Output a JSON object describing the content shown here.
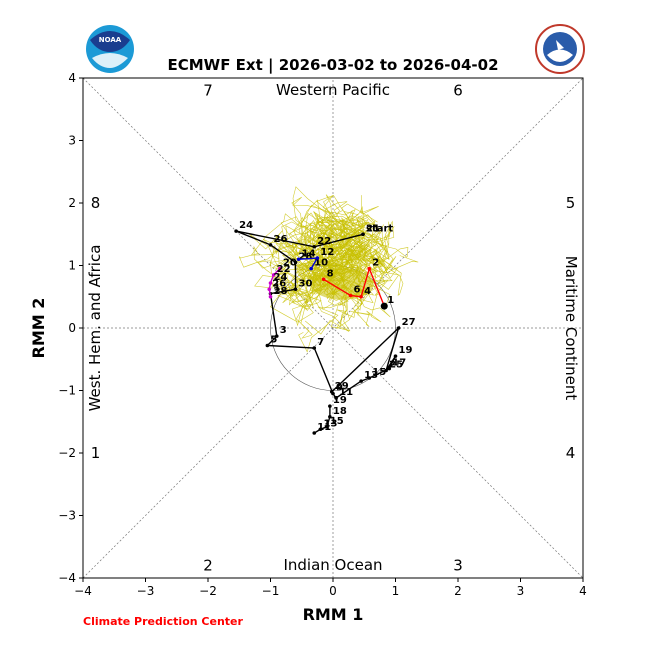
{
  "chart_data": {
    "type": "line",
    "title": "ECMWF Ext | 2026-03-02 to 2026-04-02",
    "xlabel": "RMM 1",
    "ylabel": "RMM 2",
    "xlim": [
      -4,
      4
    ],
    "ylim": [
      -4,
      4
    ],
    "xticks": [
      "−4",
      "−3",
      "−2",
      "−1",
      "0",
      "1",
      "2",
      "3",
      "4"
    ],
    "yticks": [
      "−4",
      "−3",
      "−2",
      "−1",
      "0",
      "1",
      "2",
      "3",
      "4"
    ],
    "credit": "Climate Prediction Center",
    "phase_region_labels": {
      "top": "Western Pacific",
      "bottom": "Indian Ocean",
      "left": "West. Hem. and Africa",
      "right": "Maritime Continent"
    },
    "phase_numbers": [
      {
        "text": "7",
        "x": -2.0,
        "y": 3.8
      },
      {
        "text": "6",
        "x": 2.0,
        "y": 3.8
      },
      {
        "text": "8",
        "x": -3.8,
        "y": 2.0
      },
      {
        "text": "5",
        "x": 3.8,
        "y": 2.0
      },
      {
        "text": "1",
        "x": -3.8,
        "y": -2.0
      },
      {
        "text": "4",
        "x": 3.8,
        "y": -2.0
      },
      {
        "text": "2",
        "x": -2.0,
        "y": -3.8
      },
      {
        "text": "3",
        "x": 2.0,
        "y": -3.8
      }
    ],
    "series": [
      {
        "color": "#000000",
        "points": [
          {
            "label": "start",
            "x": 0.48,
            "y": 1.5
          },
          {
            "label": "21",
            "x": 0.48,
            "y": 1.5
          },
          {
            "label": "22",
            "x": -0.3,
            "y": 1.3
          },
          {
            "label": "24",
            "x": -1.55,
            "y": 1.55
          },
          {
            "label": "26",
            "x": -1.0,
            "y": 1.33
          },
          {
            "label": "28",
            "x": -0.6,
            "y": 1.05
          },
          {
            "label": "30",
            "x": -0.6,
            "y": 0.62
          },
          {
            "label": "1",
            "x": -1.0,
            "y": 0.55
          },
          {
            "label": "3",
            "x": -0.9,
            "y": -0.13
          },
          {
            "label": "5",
            "x": -1.05,
            "y": -0.28
          },
          {
            "label": "7",
            "x": -0.3,
            "y": -0.32
          },
          {
            "label": "9",
            "x": 0.0,
            "y": -1.05
          },
          {
            "label": "11",
            "x": 0.05,
            "y": -1.12
          },
          {
            "label": "13",
            "x": 0.45,
            "y": -0.85
          },
          {
            "label": "15",
            "x": 0.58,
            "y": -0.8
          },
          {
            "label": "17",
            "x": 0.9,
            "y": -0.65
          },
          {
            "label": "19",
            "x": 1.0,
            "y": -0.45
          },
          {
            "label": "25",
            "x": 0.85,
            "y": -0.68
          },
          {
            "label": "27",
            "x": 1.05,
            "y": 0.0
          },
          {
            "label": "29",
            "x": -0.02,
            "y": -1.02
          }
        ]
      },
      {
        "color": "#ff0000",
        "points": [
          {
            "label": "1",
            "x": 0.82,
            "y": 0.35
          },
          {
            "label": "2",
            "x": 0.58,
            "y": 0.95
          },
          {
            "label": "4",
            "x": 0.45,
            "y": 0.5
          },
          {
            "label": "6",
            "x": 0.28,
            "y": 0.52
          },
          {
            "label": "8",
            "x": -0.15,
            "y": 0.78
          }
        ]
      },
      {
        "color": "#0000cc",
        "points": [
          {
            "label": "10",
            "x": -0.35,
            "y": 0.95
          },
          {
            "label": "12",
            "x": -0.25,
            "y": 1.12
          },
          {
            "label": "14",
            "x": -0.55,
            "y": 1.1
          }
        ]
      },
      {
        "color": "#cc00cc",
        "points": [
          {
            "label": "20",
            "x": -0.85,
            "y": 0.95
          },
          {
            "label": "22",
            "x": -0.95,
            "y": 0.85
          },
          {
            "label": "24",
            "x": -1.0,
            "y": 0.72
          },
          {
            "label": "26",
            "x": -1.02,
            "y": 0.62
          },
          {
            "label": "28",
            "x": -1.0,
            "y": 0.5
          }
        ]
      },
      {
        "color": "#000000",
        "points": [
          {
            "label": "19",
            "x": -0.05,
            "y": -1.25
          },
          {
            "label": "18",
            "x": -0.05,
            "y": -1.42
          },
          {
            "label": "15",
            "x": -0.1,
            "y": -1.58
          },
          {
            "label": "13",
            "x": -0.2,
            "y": -1.62
          },
          {
            "label": "11",
            "x": -0.3,
            "y": -1.68
          }
        ]
      }
    ]
  }
}
